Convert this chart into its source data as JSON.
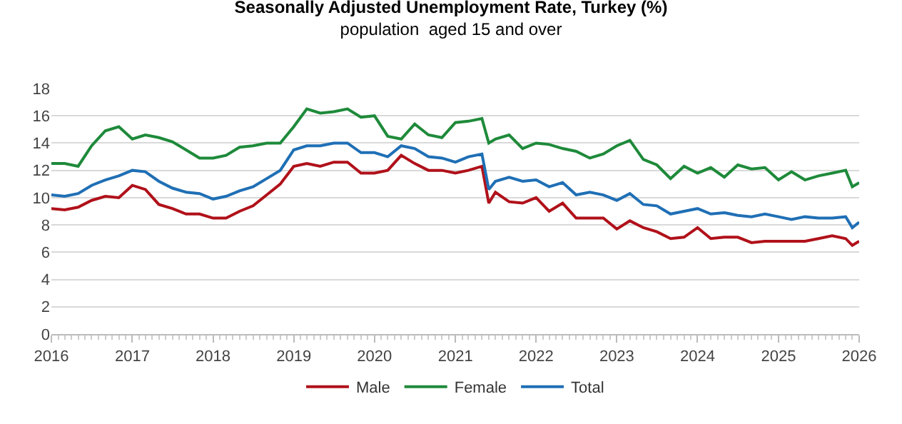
{
  "chart_data": {
    "type": "line",
    "title": "Seasonally Adjusted Unemployment Rate, Turkey (%)",
    "subtitle": "population  aged 15 and over",
    "x": [
      "2016-01",
      "2016-03",
      "2016-05",
      "2016-07",
      "2016-09",
      "2016-11",
      "2017-01",
      "2017-03",
      "2017-05",
      "2017-07",
      "2017-09",
      "2017-11",
      "2018-01",
      "2018-03",
      "2018-05",
      "2018-07",
      "2018-09",
      "2018-11",
      "2019-01",
      "2019-03",
      "2019-05",
      "2019-07",
      "2019-09",
      "2019-11",
      "2020-01",
      "2020-03",
      "2020-05",
      "2020-07",
      "2020-09",
      "2020-11",
      "2021-01",
      "2021-03",
      "2021-05",
      "2021-06",
      "2021-07",
      "2021-09",
      "2021-11",
      "2022-01",
      "2022-03",
      "2022-05",
      "2022-07",
      "2022-09",
      "2022-11",
      "2023-01",
      "2023-03",
      "2023-05",
      "2023-07",
      "2023-09",
      "2023-11",
      "2024-01",
      "2024-03",
      "2024-05",
      "2024-07",
      "2024-09",
      "2024-11",
      "2025-01",
      "2025-03",
      "2025-05",
      "2025-07",
      "2025-09",
      "2025-11",
      "2025-12",
      "2026-01"
    ],
    "series": [
      {
        "name": "Male",
        "color": "#b0111a",
        "values": [
          9.2,
          9.1,
          9.3,
          9.8,
          10.1,
          10.0,
          10.9,
          10.6,
          9.5,
          9.2,
          8.8,
          8.8,
          8.5,
          8.5,
          9.0,
          9.4,
          10.2,
          11.0,
          12.3,
          12.5,
          12.3,
          12.6,
          12.6,
          11.8,
          11.8,
          12.0,
          13.1,
          12.5,
          12.0,
          12.0,
          11.8,
          12.0,
          12.3,
          9.6,
          10.4,
          9.7,
          9.6,
          10.0,
          9.0,
          9.6,
          8.5,
          8.5,
          8.5,
          7.7,
          8.3,
          7.8,
          7.5,
          7.0,
          7.1,
          7.8,
          7.0,
          7.1,
          7.1,
          6.7,
          6.8,
          6.8,
          6.8,
          6.8,
          7.0,
          7.2,
          7.0,
          6.5,
          6.8
        ]
      },
      {
        "name": "Female",
        "color": "#1e8a3a",
        "values": [
          12.5,
          12.5,
          12.3,
          13.8,
          14.9,
          15.2,
          14.3,
          14.6,
          14.4,
          14.1,
          13.5,
          12.9,
          12.9,
          13.1,
          13.7,
          13.8,
          14.0,
          14.0,
          15.2,
          16.5,
          16.2,
          16.3,
          16.5,
          15.9,
          16.0,
          14.5,
          14.3,
          15.4,
          14.6,
          14.4,
          15.5,
          15.6,
          15.8,
          14.0,
          14.3,
          14.6,
          13.6,
          14.0,
          13.9,
          13.6,
          13.4,
          12.9,
          13.2,
          13.8,
          14.2,
          12.8,
          12.4,
          11.4,
          12.3,
          11.8,
          12.2,
          11.5,
          12.4,
          12.1,
          12.2,
          11.3,
          11.9,
          11.3,
          11.6,
          11.8,
          12.0,
          10.8,
          11.1
        ]
      },
      {
        "name": "Total",
        "color": "#1f6fb5",
        "values": [
          10.2,
          10.1,
          10.3,
          10.9,
          11.3,
          11.6,
          12.0,
          11.9,
          11.2,
          10.7,
          10.4,
          10.3,
          9.9,
          10.1,
          10.5,
          10.8,
          11.4,
          12.0,
          13.5,
          13.8,
          13.8,
          14.0,
          14.0,
          13.3,
          13.3,
          13.0,
          13.8,
          13.6,
          13.0,
          12.9,
          12.6,
          13.0,
          13.2,
          10.6,
          11.2,
          11.5,
          11.2,
          11.3,
          10.8,
          11.1,
          10.2,
          10.4,
          10.2,
          9.8,
          10.3,
          9.5,
          9.4,
          8.8,
          9.0,
          9.2,
          8.8,
          8.9,
          8.7,
          8.6,
          8.8,
          8.6,
          8.4,
          8.6,
          8.5,
          8.5,
          8.6,
          7.8,
          8.2
        ]
      }
    ],
    "xlim": [
      "2016-01-01",
      "2026-01-01"
    ],
    "xticks": [
      {
        "value": "2016-01-01",
        "label": "2016"
      },
      {
        "value": "2017-01-01",
        "label": "2017"
      },
      {
        "value": "2018-01-01",
        "label": "2018"
      },
      {
        "value": "2019-01-01",
        "label": "2019"
      },
      {
        "value": "2020-01-01",
        "label": "2020"
      },
      {
        "value": "2021-01-01",
        "label": "2021"
      },
      {
        "value": "2022-01-01",
        "label": "2022"
      },
      {
        "value": "2023-01-01",
        "label": "2023"
      },
      {
        "value": "2024-01-01",
        "label": "2024"
      },
      {
        "value": "2025-01-01",
        "label": "2025"
      },
      {
        "value": "2026-01-01",
        "label": "2026"
      }
    ],
    "ylim": [
      0,
      18
    ],
    "yticks": [
      0,
      2,
      4,
      6,
      8,
      10,
      12,
      14,
      16,
      18
    ],
    "grid": "y",
    "legend": "bottom",
    "marker": "none",
    "line_style": "solid"
  }
}
